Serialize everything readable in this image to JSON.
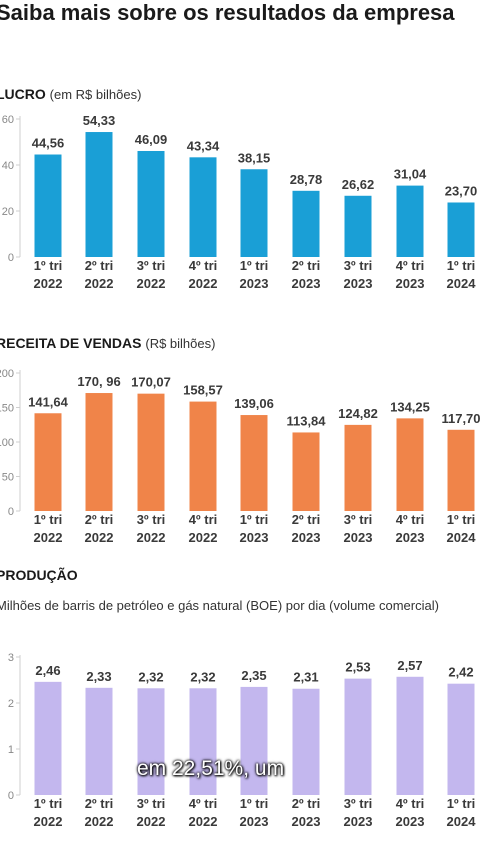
{
  "page": {
    "title": "Saiba mais sobre os resultados da empresa",
    "caption": "em 22,51%, um"
  },
  "chart_data": [
    {
      "type": "bar",
      "title": "LUCRO",
      "unit": "(em R$ bilhões)",
      "color": "#1a9fd6",
      "categories": [
        "1º tri 2022",
        "2º tri 2022",
        "3º tri 2022",
        "4º tri 2022",
        "1º tri 2023",
        "2º tri 2023",
        "3º tri 2023",
        "4º tri 2023",
        "1º tri 2024"
      ],
      "values": [
        44.56,
        54.33,
        46.09,
        43.34,
        38.15,
        28.78,
        26.62,
        31.04,
        23.7
      ],
      "labels": [
        "44,56",
        "54,33",
        "46,09",
        "43,34",
        "38,15",
        "28,78",
        "26,62",
        "31,04",
        "23,70"
      ],
      "yticks": [
        0,
        20,
        40,
        60
      ],
      "ylim": [
        0,
        60
      ]
    },
    {
      "type": "bar",
      "title": "RECEITA DE VENDAS",
      "unit": "(R$ bilhões)",
      "color": "#f08449",
      "categories": [
        "1º tri 2022",
        "2º tri 2022",
        "3º tri 2022",
        "4º tri 2022",
        "1º tri 2023",
        "2º tri 2023",
        "3º tri 2023",
        "4º tri 2023",
        "1º tri 2024"
      ],
      "values": [
        141.64,
        170.96,
        170.07,
        158.57,
        139.06,
        113.84,
        124.82,
        134.25,
        117.7
      ],
      "labels": [
        "141,64",
        "170, 96",
        "170,07",
        "158,57",
        "139,06",
        "113,84",
        "124,82",
        "134,25",
        "117,70"
      ],
      "yticks": [
        0,
        50,
        100,
        150,
        200
      ],
      "ylim": [
        0,
        200
      ]
    },
    {
      "type": "bar",
      "title": "PRODUÇÃO",
      "subtitle": "Milhões de barris de petróleo e gás natural (BOE) por dia (volume comercial)",
      "color": "#c3b7ee",
      "categories": [
        "1º tri 2022",
        "2º tri 2022",
        "3º tri 2022",
        "4º tri 2022",
        "1º tri 2023",
        "2º tri 2023",
        "3º tri 2023",
        "4º tri 2023",
        "1º tri 2024"
      ],
      "values": [
        2.46,
        2.33,
        2.32,
        2.32,
        2.35,
        2.31,
        2.53,
        2.57,
        2.42
      ],
      "labels": [
        "2,46",
        "2,33",
        "2,32",
        "2,32",
        "2,35",
        "2,31",
        "2,53",
        "2,57",
        "2,42"
      ],
      "yticks": [
        0,
        1,
        2,
        3
      ],
      "ylim": [
        0,
        3
      ]
    }
  ]
}
